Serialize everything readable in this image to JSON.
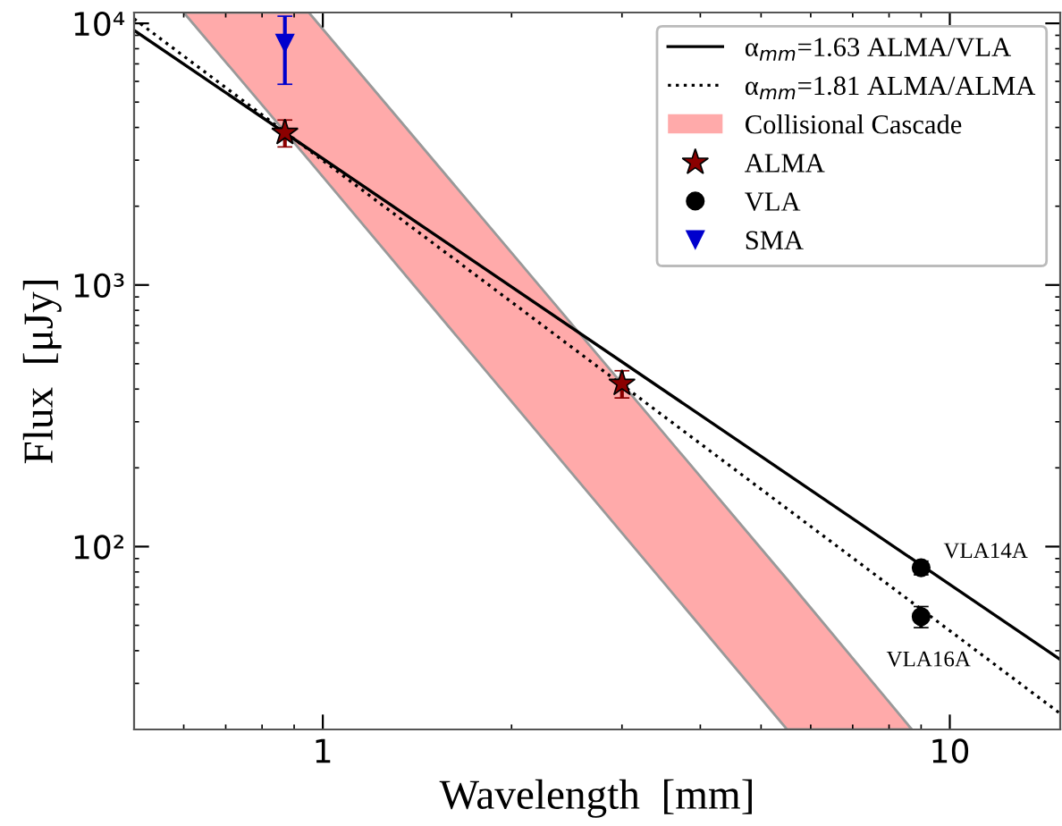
{
  "chart_data": {
    "type": "scatter",
    "xlabel": "Wavelength  [mm]",
    "ylabel": "Flux  [μJy]",
    "log": "xy",
    "xlim": [
      0.5,
      15
    ],
    "ylim": [
      20,
      11000
    ],
    "xticks": [
      1,
      10
    ],
    "yticks": [
      {
        "value": 100,
        "label": "10²"
      },
      {
        "value": 1000,
        "label": "10³"
      },
      {
        "value": 10000,
        "label": "10⁴"
      }
    ],
    "grid": false,
    "legend": "top right",
    "series": [
      {
        "name": "α$_{mm}$=1.63 ALMA/VLA",
        "type": "line",
        "color": "#000000",
        "line_style": "solid",
        "marker": "none",
        "x": [
          0.5,
          15
        ],
        "values": [
          9400,
          37
        ]
      },
      {
        "name": "α$_{mm}$=1.81 ALMA/ALMA",
        "type": "line",
        "color": "#000000",
        "line_style": "dotted",
        "marker": "none",
        "x": [
          0.5,
          15
        ],
        "values": [
          10400,
          23
        ]
      },
      {
        "name": "Collisional Cascade",
        "type": "area",
        "color": "#ffaaaa",
        "x": [
          0.6,
          0.95,
          5.5,
          8.7
        ],
        "values": [
          null,
          null,
          null,
          null
        ],
        "lower": [
          11000,
          3000,
          20,
          20
        ],
        "upper": [
          11000,
          11000,
          75,
          20
        ]
      },
      {
        "name": "ALMA",
        "color": "#8b0000",
        "marker": "star",
        "x": [
          0.87,
          3.0
        ],
        "values": [
          3820,
          420
        ],
        "errors": [
          450,
          50
        ]
      },
      {
        "name": "VLA",
        "color": "#000000",
        "marker": "circle",
        "x": [
          9.0,
          9.0
        ],
        "values": [
          83,
          54
        ],
        "errors": [
          5,
          5
        ]
      },
      {
        "name": "SMA",
        "color": "#0000cd",
        "marker": "triangle",
        "x": [
          0.87
        ],
        "values": [
          8400
        ],
        "errors": [
          [
            5850,
            10650
          ]
        ]
      }
    ],
    "annotations": [
      {
        "text": "VLA14A",
        "x": 9.0,
        "y": 83
      },
      {
        "text": "VLA16A",
        "x": 9.0,
        "y": 54
      }
    ]
  }
}
